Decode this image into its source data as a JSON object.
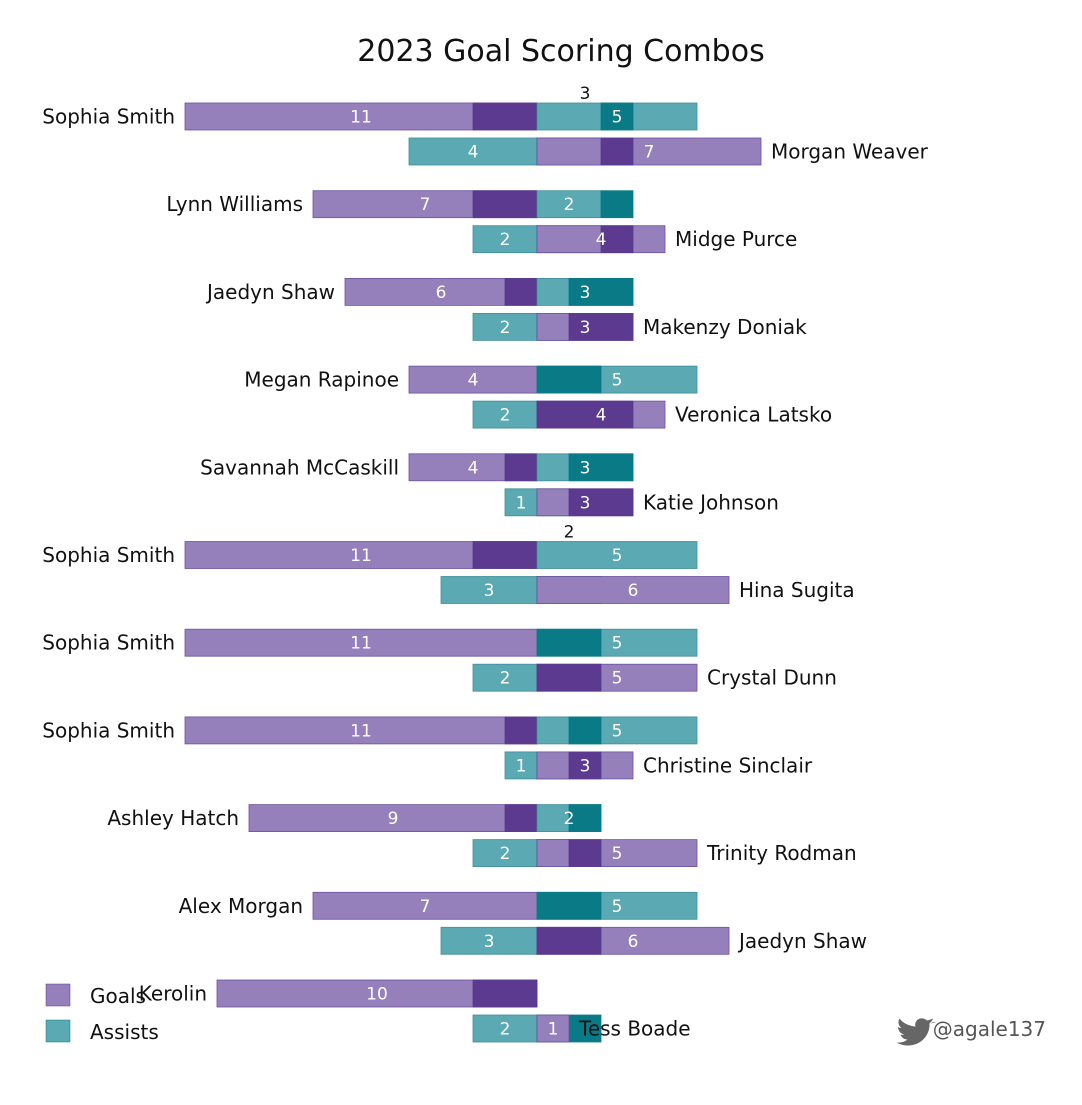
{
  "chart_data": {
    "type": "bar",
    "title": "2023 Goal Scoring Combos",
    "legend": {
      "placement": "bottom-left",
      "items": [
        {
          "label": "Goals",
          "color": "#9580bb"
        },
        {
          "label": "Assists",
          "color": "#5aa9b3"
        }
      ]
    },
    "colors": {
      "goals": "#9580bb",
      "assists": "#5aa9b3",
      "combo_goals": "#5b3a8f",
      "combo_assists": "#0b7a87"
    },
    "credit": "@agale137",
    "credit_icon": "twitter-bird-icon",
    "pairs": [
      {
        "combo": "3",
        "a": {
          "name": "Sophia Smith",
          "goals": 11,
          "combo_goals": 2,
          "combo_assists": 1,
          "assists": 5
        },
        "b": {
          "name": "Morgan Weaver",
          "assists": 4,
          "combo_assists": 2,
          "combo_goals": 1,
          "goals": 7
        }
      },
      {
        "combo": "",
        "a": {
          "name": "Lynn Williams",
          "goals": 7,
          "combo_goals": 2,
          "combo_assists": 1,
          "assists": 2
        },
        "b": {
          "name": "Midge Purce",
          "assists": 2,
          "combo_assists": 2,
          "combo_goals": 1,
          "goals": 4
        }
      },
      {
        "combo": "",
        "a": {
          "name": "Jaedyn Shaw",
          "goals": 6,
          "combo_goals": 1,
          "combo_assists": 2,
          "assists": 3
        },
        "b": {
          "name": "Makenzy Doniak",
          "assists": 2,
          "combo_assists": 1,
          "combo_goals": 2,
          "goals": 3
        }
      },
      {
        "combo": "",
        "a": {
          "name": "Megan Rapinoe",
          "goals": 4,
          "combo_goals": 0,
          "combo_assists": 2,
          "assists": 5
        },
        "b": {
          "name": "Veronica Latsko",
          "assists": 2,
          "combo_assists": 0,
          "combo_goals": 3,
          "goals": 4
        }
      },
      {
        "combo": "",
        "a": {
          "name": "Savannah McCaskill",
          "goals": 4,
          "combo_goals": 1,
          "combo_assists": 2,
          "assists": 3
        },
        "b": {
          "name": "Katie Johnson",
          "assists": 1,
          "combo_assists": 1,
          "combo_goals": 2,
          "goals": 3
        }
      },
      {
        "combo": "2",
        "a": {
          "name": "Sophia Smith",
          "goals": 11,
          "combo_goals": 2,
          "combo_assists": 0,
          "assists": 5
        },
        "b": {
          "name": "Hina Sugita",
          "assists": 3,
          "combo_assists": 2,
          "combo_goals": 0,
          "goals": 6
        }
      },
      {
        "combo": "",
        "a": {
          "name": "Sophia Smith",
          "goals": 11,
          "combo_goals": 0,
          "combo_assists": 2,
          "assists": 5
        },
        "b": {
          "name": "Crystal Dunn",
          "assists": 2,
          "combo_assists": 0,
          "combo_goals": 2,
          "goals": 5
        }
      },
      {
        "combo": "",
        "a": {
          "name": "Sophia Smith",
          "goals": 11,
          "combo_goals": 1,
          "combo_assists": 1,
          "assists": 5
        },
        "b": {
          "name": "Christine Sinclair",
          "assists": 1,
          "combo_assists": 1,
          "combo_goals": 1,
          "goals": 3
        }
      },
      {
        "combo": "",
        "a": {
          "name": "Ashley Hatch",
          "goals": 9,
          "combo_goals": 1,
          "combo_assists": 1,
          "assists": 2
        },
        "b": {
          "name": "Trinity Rodman",
          "assists": 2,
          "combo_assists": 1,
          "combo_goals": 1,
          "goals": 5
        }
      },
      {
        "combo": "",
        "a": {
          "name": "Alex Morgan",
          "goals": 7,
          "combo_goals": 0,
          "combo_assists": 2,
          "assists": 5
        },
        "b": {
          "name": "Jaedyn Shaw",
          "assists": 3,
          "combo_assists": 0,
          "combo_goals": 2,
          "goals": 6
        }
      },
      {
        "combo": "",
        "a": {
          "name": "Kerolin",
          "goals": 10,
          "combo_goals": 2,
          "combo_assists": 0,
          "assists": 0,
          "hide_assist_label": true
        },
        "b": {
          "name": "Tess Boade",
          "assists": 2,
          "combo_assists": 2,
          "combo_goals": 0,
          "goals": 1
        }
      }
    ]
  }
}
